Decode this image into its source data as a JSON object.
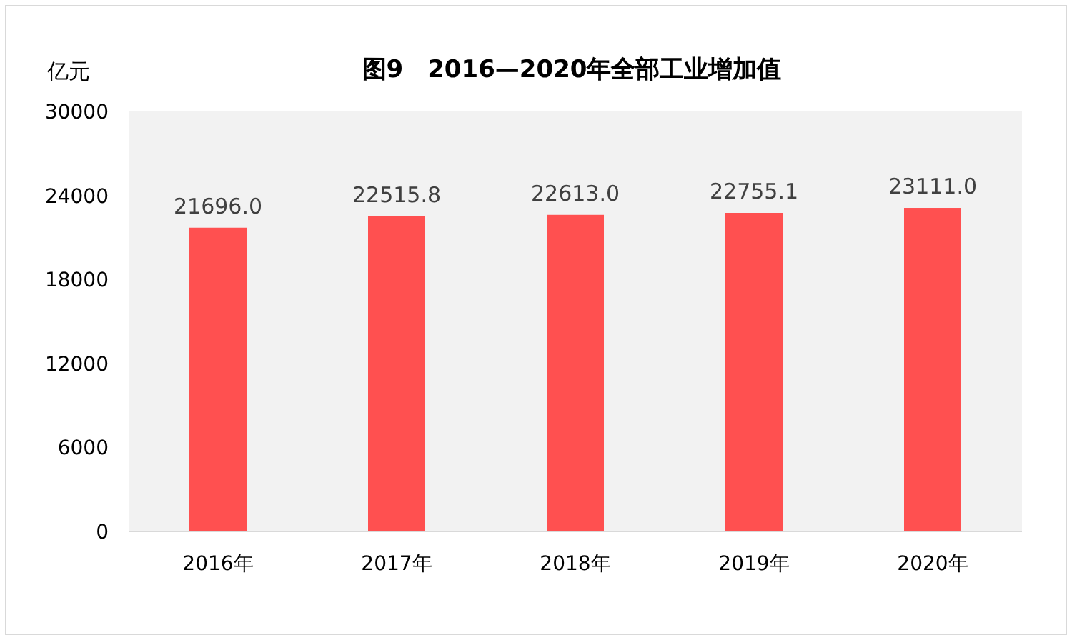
{
  "chart_data": {
    "type": "bar",
    "title": "图9　2016—2020年全部工业增加值",
    "ylabel": "亿元",
    "categories": [
      "2016年",
      "2017年",
      "2018年",
      "2019年",
      "2020年"
    ],
    "values": [
      21696.0,
      22515.8,
      22613.0,
      22755.1,
      23111.0
    ],
    "value_labels": [
      "21696.0",
      "22515.8",
      "22613.0",
      "22755.1",
      "23111.0"
    ],
    "color": "#ff5050",
    "ylim": [
      0,
      30000
    ],
    "yticks": [
      0,
      6000,
      12000,
      18000,
      24000,
      30000
    ],
    "grid": false
  }
}
